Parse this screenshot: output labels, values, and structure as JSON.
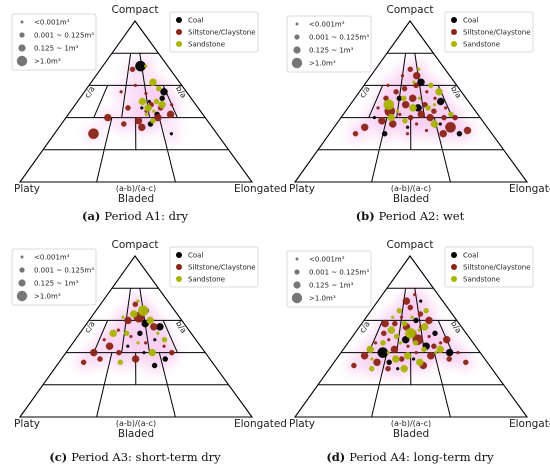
{
  "chart_data": [
    {
      "type": "scatter",
      "panel_label": "(a)",
      "caption": "Period A1: dry",
      "vertices": {
        "top": "Compact",
        "left": "Platy",
        "right": "Elongated"
      },
      "axis_labels": {
        "left_side": "c/a",
        "right_side": "b/a",
        "bottom_ratio": "(a-b)/(a-c)",
        "bottom": "Bladed"
      },
      "size_legend": [
        "<0.001m³",
        "0.001 ~ 0.125m³",
        "0.125 ~ 1m³",
        ">1.0m³"
      ],
      "series": [
        {
          "name": "Coal",
          "color": "#000000",
          "points": [
            [
              0.62,
              0.5
            ],
            [
              0.74,
              0.52
            ],
            [
              0.78,
              0.56
            ],
            [
              0.55,
              0.46
            ],
            [
              0.66,
              0.42
            ],
            [
              0.58,
              0.72
            ],
            [
              0.72,
              0.3
            ],
            [
              0.6,
              0.36
            ]
          ]
        },
        {
          "name": "Siltstone/Claystone",
          "color": "#8b2316",
          "points": [
            [
              0.24,
              0.3
            ],
            [
              0.3,
              0.4
            ],
            [
              0.36,
              0.56
            ],
            [
              0.44,
              0.46
            ],
            [
              0.52,
              0.38
            ],
            [
              0.58,
              0.44
            ],
            [
              0.63,
              0.48
            ],
            [
              0.66,
              0.4
            ],
            [
              0.6,
              0.55
            ],
            [
              0.7,
              0.46
            ],
            [
              0.76,
              0.42
            ],
            [
              0.5,
              0.6
            ],
            [
              0.46,
              0.7
            ],
            [
              0.54,
              0.34
            ],
            [
              0.8,
              0.48
            ],
            [
              0.42,
              0.36
            ]
          ]
        },
        {
          "name": "Sandstone",
          "color": "#a8b400",
          "points": [
            [
              0.6,
              0.46
            ],
            [
              0.64,
              0.44
            ],
            [
              0.68,
              0.5
            ],
            [
              0.72,
              0.48
            ],
            [
              0.58,
              0.42
            ],
            [
              0.62,
              0.38
            ],
            [
              0.7,
              0.62
            ],
            [
              0.66,
              0.72
            ],
            [
              0.74,
              0.58
            ],
            [
              0.56,
              0.5
            ]
          ]
        }
      ]
    },
    {
      "type": "scatter",
      "panel_label": "(b)",
      "caption": "Period A2: wet",
      "vertices": {
        "top": "Compact",
        "left": "Platy",
        "right": "Elongated"
      },
      "axis_labels": {
        "left_side": "c/a",
        "right_side": "b/a",
        "bottom_ratio": "(a-b)/(a-c)",
        "bottom": "Bladed"
      },
      "size_legend": [
        "<0.001m³",
        "0.001 ~ 0.125m³",
        "0.125 ~ 1m³",
        ">1.0m³"
      ],
      "series": [
        {
          "name": "Coal",
          "color": "#000000",
          "points": [
            [
              0.24,
              0.4
            ],
            [
              0.4,
              0.52
            ],
            [
              0.56,
              0.46
            ],
            [
              0.7,
              0.36
            ],
            [
              0.8,
              0.3
            ],
            [
              0.62,
              0.62
            ],
            [
              0.48,
              0.34
            ],
            [
              0.34,
              0.3
            ],
            [
              0.76,
              0.5
            ]
          ]
        },
        {
          "name": "Siltstone/Claystone",
          "color": "#8b2316",
          "points": [
            [
              0.16,
              0.3
            ],
            [
              0.2,
              0.34
            ],
            [
              0.24,
              0.46
            ],
            [
              0.28,
              0.52
            ],
            [
              0.3,
              0.38
            ],
            [
              0.34,
              0.44
            ],
            [
              0.36,
              0.56
            ],
            [
              0.38,
              0.36
            ],
            [
              0.42,
              0.42
            ],
            [
              0.44,
              0.58
            ],
            [
              0.46,
              0.48
            ],
            [
              0.48,
              0.3
            ],
            [
              0.5,
              0.4
            ],
            [
              0.52,
              0.52
            ],
            [
              0.54,
              0.36
            ],
            [
              0.56,
              0.6
            ],
            [
              0.58,
              0.42
            ],
            [
              0.6,
              0.32
            ],
            [
              0.62,
              0.48
            ],
            [
              0.64,
              0.4
            ],
            [
              0.66,
              0.56
            ],
            [
              0.68,
              0.44
            ],
            [
              0.7,
              0.3
            ],
            [
              0.72,
              0.52
            ],
            [
              0.74,
              0.4
            ],
            [
              0.76,
              0.34
            ],
            [
              0.78,
              0.46
            ],
            [
              0.82,
              0.4
            ],
            [
              0.86,
              0.32
            ],
            [
              0.4,
              0.66
            ],
            [
              0.5,
              0.7
            ],
            [
              0.58,
              0.66
            ],
            [
              0.26,
              0.6
            ]
          ]
        },
        {
          "name": "Sandstone",
          "color": "#a8b400",
          "points": [
            [
              0.32,
              0.48
            ],
            [
              0.4,
              0.44
            ],
            [
              0.46,
              0.38
            ],
            [
              0.52,
              0.46
            ],
            [
              0.58,
              0.52
            ],
            [
              0.64,
              0.46
            ],
            [
              0.66,
              0.36
            ],
            [
              0.7,
              0.48
            ],
            [
              0.72,
              0.6
            ],
            [
              0.78,
              0.56
            ],
            [
              0.62,
              0.7
            ],
            [
              0.44,
              0.52
            ],
            [
              0.36,
              0.4
            ],
            [
              0.54,
              0.62
            ],
            [
              0.8,
              0.42
            ]
          ]
        }
      ]
    },
    {
      "type": "scatter",
      "panel_label": "(c)",
      "caption": "Period A3: short-term dry",
      "vertices": {
        "top": "Compact",
        "left": "Platy",
        "right": "Elongated"
      },
      "axis_labels": {
        "left_side": "c/a",
        "right_side": "b/a",
        "bottom_ratio": "(a-b)/(a-c)",
        "bottom": "Bladed"
      },
      "size_legend": [
        "<0.001m³",
        "0.001 ~ 0.125m³",
        "0.125 ~ 1m³",
        ">1.0m³"
      ],
      "series": [
        {
          "name": "Coal",
          "color": "#000000",
          "points": [
            [
              0.44,
              0.44
            ],
            [
              0.54,
              0.52
            ],
            [
              0.6,
              0.58
            ],
            [
              0.66,
              0.48
            ],
            [
              0.7,
              0.36
            ],
            [
              0.74,
              0.56
            ],
            [
              0.56,
              0.4
            ],
            [
              0.62,
              0.32
            ]
          ]
        },
        {
          "name": "Siltstone/Claystone",
          "color": "#8b2316",
          "points": [
            [
              0.16,
              0.34
            ],
            [
              0.2,
              0.4
            ],
            [
              0.24,
              0.48
            ],
            [
              0.26,
              0.36
            ],
            [
              0.3,
              0.44
            ],
            [
              0.34,
              0.54
            ],
            [
              0.38,
              0.4
            ],
            [
              0.42,
              0.6
            ],
            [
              0.46,
              0.5
            ],
            [
              0.5,
              0.7
            ],
            [
              0.54,
              0.62
            ],
            [
              0.58,
              0.46
            ],
            [
              0.64,
              0.66
            ],
            [
              0.68,
              0.56
            ],
            [
              0.72,
              0.44
            ],
            [
              0.76,
              0.4
            ],
            [
              0.5,
              0.36
            ]
          ]
        },
        {
          "name": "Sandstone",
          "color": "#a8b400",
          "points": [
            [
              0.3,
              0.52
            ],
            [
              0.36,
              0.62
            ],
            [
              0.42,
              0.52
            ],
            [
              0.48,
              0.64
            ],
            [
              0.54,
              0.72
            ],
            [
              0.6,
              0.66
            ],
            [
              0.66,
              0.6
            ],
            [
              0.7,
              0.52
            ],
            [
              0.74,
              0.48
            ],
            [
              0.62,
              0.4
            ],
            [
              0.52,
              0.46
            ],
            [
              0.4,
              0.34
            ]
          ]
        }
      ]
    },
    {
      "type": "scatter",
      "panel_label": "(d)",
      "caption": "Period A4: long-term dry",
      "vertices": {
        "top": "Compact",
        "left": "Platy",
        "right": "Elongated"
      },
      "axis_labels": {
        "left_side": "c/a",
        "right_side": "b/a",
        "bottom_ratio": "(a-b)/(a-c)",
        "bottom": "Bladed"
      },
      "size_legend": [
        "<0.001m³",
        "0.001 ~ 0.125m³",
        "0.125 ~ 1m³",
        ">1.0m³"
      ],
      "series": [
        {
          "name": "Coal",
          "color": "#000000",
          "points": [
            [
              0.3,
              0.4
            ],
            [
              0.36,
              0.34
            ],
            [
              0.46,
              0.48
            ],
            [
              0.52,
              0.36
            ],
            [
              0.56,
              0.6
            ],
            [
              0.62,
              0.44
            ],
            [
              0.66,
              0.72
            ],
            [
              0.72,
              0.52
            ],
            [
              0.78,
              0.4
            ],
            [
              0.42,
              0.3
            ]
          ]
        },
        {
          "name": "Siltstone/Claystone",
          "color": "#8b2316",
          "points": [
            [
              0.14,
              0.32
            ],
            [
              0.18,
              0.38
            ],
            [
              0.22,
              0.46
            ],
            [
              0.26,
              0.52
            ],
            [
              0.28,
              0.34
            ],
            [
              0.32,
              0.48
            ],
            [
              0.34,
              0.58
            ],
            [
              0.38,
              0.42
            ],
            [
              0.4,
              0.62
            ],
            [
              0.44,
              0.36
            ],
            [
              0.46,
              0.56
            ],
            [
              0.48,
              0.44
            ],
            [
              0.5,
              0.68
            ],
            [
              0.52,
              0.52
            ],
            [
              0.54,
              0.4
            ],
            [
              0.56,
              0.48
            ],
            [
              0.58,
              0.32
            ],
            [
              0.6,
              0.56
            ],
            [
              0.62,
              0.64
            ],
            [
              0.64,
              0.38
            ],
            [
              0.66,
              0.5
            ],
            [
              0.68,
              0.44
            ],
            [
              0.7,
              0.6
            ],
            [
              0.74,
              0.46
            ],
            [
              0.76,
              0.36
            ],
            [
              0.8,
              0.48
            ],
            [
              0.84,
              0.4
            ],
            [
              0.86,
              0.34
            ],
            [
              0.44,
              0.72
            ],
            [
              0.58,
              0.76
            ],
            [
              0.36,
              0.3
            ],
            [
              0.24,
              0.58
            ]
          ]
        },
        {
          "name": "Sandstone",
          "color": "#a8b400",
          "points": [
            [
              0.2,
              0.42
            ],
            [
              0.24,
              0.36
            ],
            [
              0.28,
              0.46
            ],
            [
              0.32,
              0.54
            ],
            [
              0.34,
              0.4
            ],
            [
              0.38,
              0.5
            ],
            [
              0.4,
              0.36
            ],
            [
              0.42,
              0.46
            ],
            [
              0.44,
              0.58
            ],
            [
              0.48,
              0.38
            ],
            [
              0.5,
              0.52
            ],
            [
              0.54,
              0.46
            ],
            [
              0.56,
              0.34
            ],
            [
              0.58,
              0.54
            ],
            [
              0.6,
              0.42
            ],
            [
              0.64,
              0.56
            ],
            [
              0.68,
              0.4
            ],
            [
              0.7,
              0.66
            ],
            [
              0.72,
              0.42
            ],
            [
              0.3,
              0.62
            ],
            [
              0.36,
              0.66
            ],
            [
              0.46,
              0.3
            ],
            [
              0.52,
              0.62
            ],
            [
              0.26,
              0.3
            ]
          ]
        }
      ]
    }
  ]
}
